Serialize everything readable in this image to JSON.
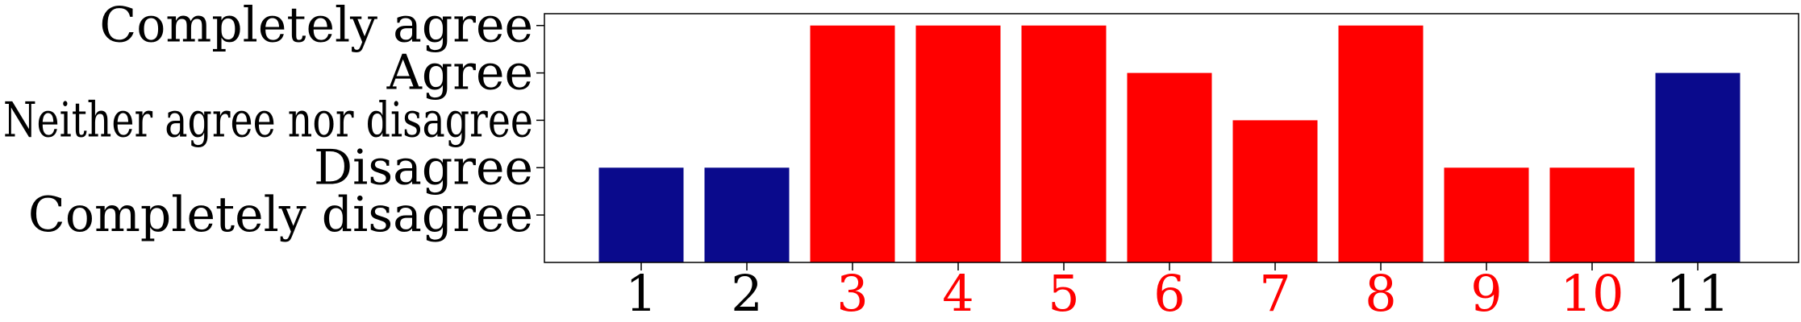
{
  "chart_data": {
    "type": "bar",
    "title": "",
    "xlabel": "",
    "ylabel": "",
    "categories": [
      "1",
      "2",
      "3",
      "4",
      "5",
      "6",
      "7",
      "8",
      "9",
      "10",
      "11"
    ],
    "values": [
      2,
      2,
      5,
      5,
      5,
      4,
      3,
      5,
      2,
      2,
      4
    ],
    "bar_colors": [
      "#0a0a8c",
      "#0a0a8c",
      "#ff0000",
      "#ff0000",
      "#ff0000",
      "#ff0000",
      "#ff0000",
      "#ff0000",
      "#ff0000",
      "#ff0000",
      "#0a0a8c"
    ],
    "xtick_colors": [
      "#000000",
      "#000000",
      "#ff0000",
      "#ff0000",
      "#ff0000",
      "#ff0000",
      "#ff0000",
      "#ff0000",
      "#ff0000",
      "#ff0000",
      "#000000"
    ],
    "y_ticks": [
      {
        "value": 1,
        "label": "Completely disagree"
      },
      {
        "value": 2,
        "label": "Disagree"
      },
      {
        "value": 3,
        "label": "Neither agree nor disagree"
      },
      {
        "value": 4,
        "label": "Agree"
      },
      {
        "value": 5,
        "label": "Completely agree"
      }
    ],
    "ylim": [
      0,
      5.25
    ],
    "grid": false,
    "legend": "none"
  }
}
